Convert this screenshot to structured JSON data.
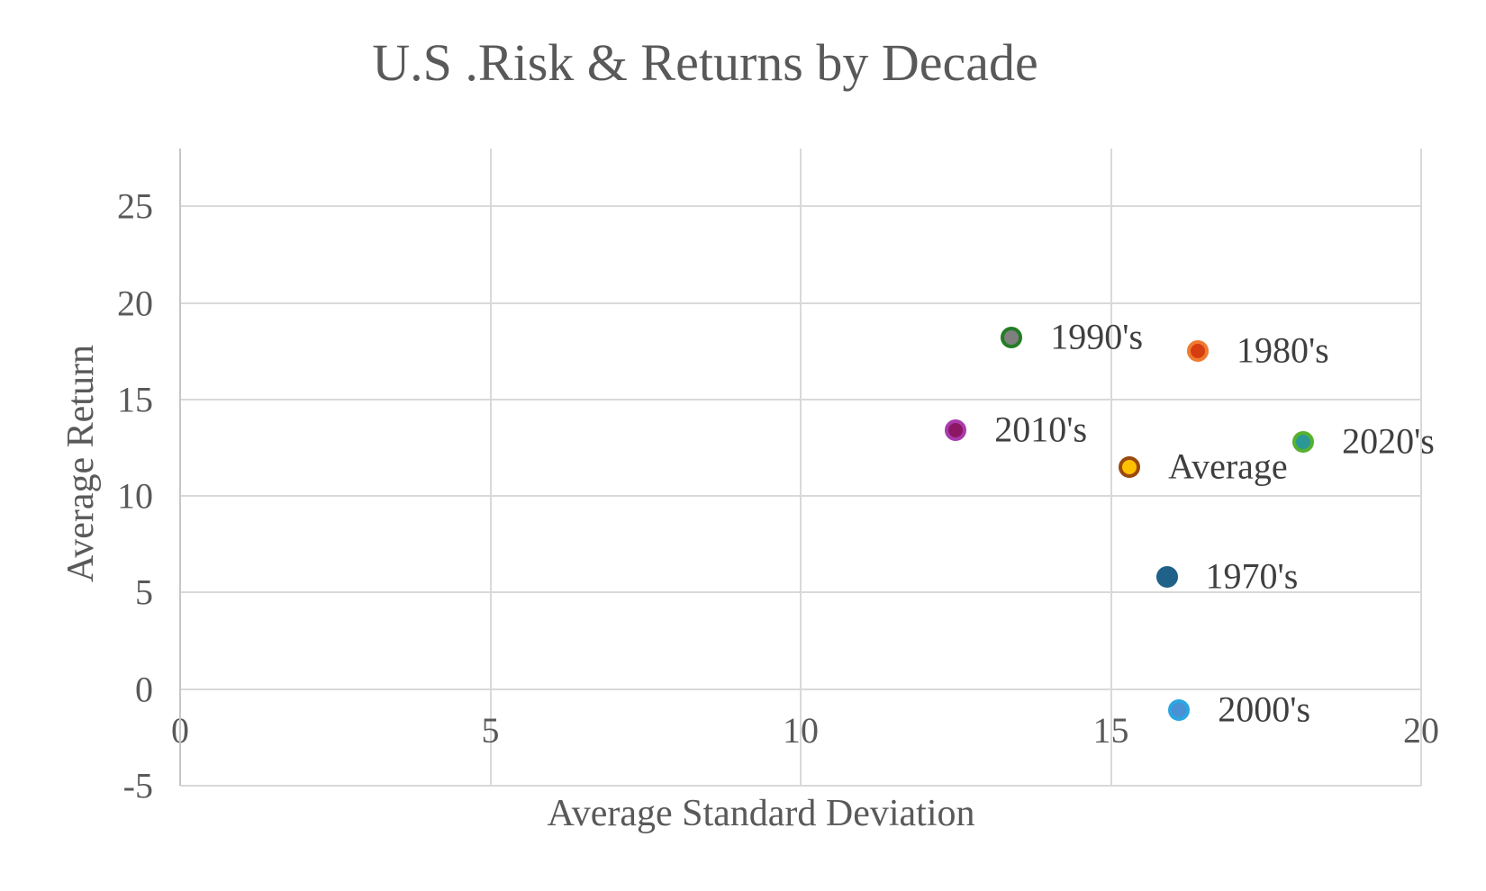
{
  "chart_data": {
    "type": "scatter",
    "title": "U.S .Risk & Returns by Decade",
    "xlabel": "Average Standard Deviation",
    "ylabel": "Average Return",
    "xlim": [
      0,
      20
    ],
    "ylim": [
      -5,
      28
    ],
    "x_ticks": [
      0,
      5,
      10,
      15,
      20
    ],
    "y_ticks": [
      -5,
      0,
      5,
      10,
      15,
      20,
      25
    ],
    "grid": true,
    "legend": "none",
    "colors": {
      "title_text": "#595959",
      "tick_text": "#595959",
      "data_label_text": "#3f3f3f",
      "gridline": "#d9d9d9",
      "axis_line": "#c6c6c6",
      "background": "#ffffff"
    },
    "points": [
      {
        "label": "1990's",
        "x": 13.4,
        "y": 18.2,
        "fill": "#7f7f7f",
        "stroke": "#237d26"
      },
      {
        "label": "1980's",
        "x": 16.4,
        "y": 17.5,
        "fill": "#d63e12",
        "stroke": "#ef7b30"
      },
      {
        "label": "2010's",
        "x": 12.5,
        "y": 13.4,
        "fill": "#8c1863",
        "stroke": "#a93bad"
      },
      {
        "label": "2020's",
        "x": 18.1,
        "y": 12.8,
        "fill": "#2a9897",
        "stroke": "#56b12f"
      },
      {
        "label": "Average",
        "x": 15.3,
        "y": 11.5,
        "fill": "#ffc000",
        "stroke": "#9a4a0f"
      },
      {
        "label": "1970's",
        "x": 15.9,
        "y": 5.8,
        "fill": "#1f6188",
        "stroke": "#1f6188"
      },
      {
        "label": "2000's",
        "x": 16.1,
        "y": -1.1,
        "fill": "#4b8fd4",
        "stroke": "#2ba6e0"
      }
    ]
  }
}
